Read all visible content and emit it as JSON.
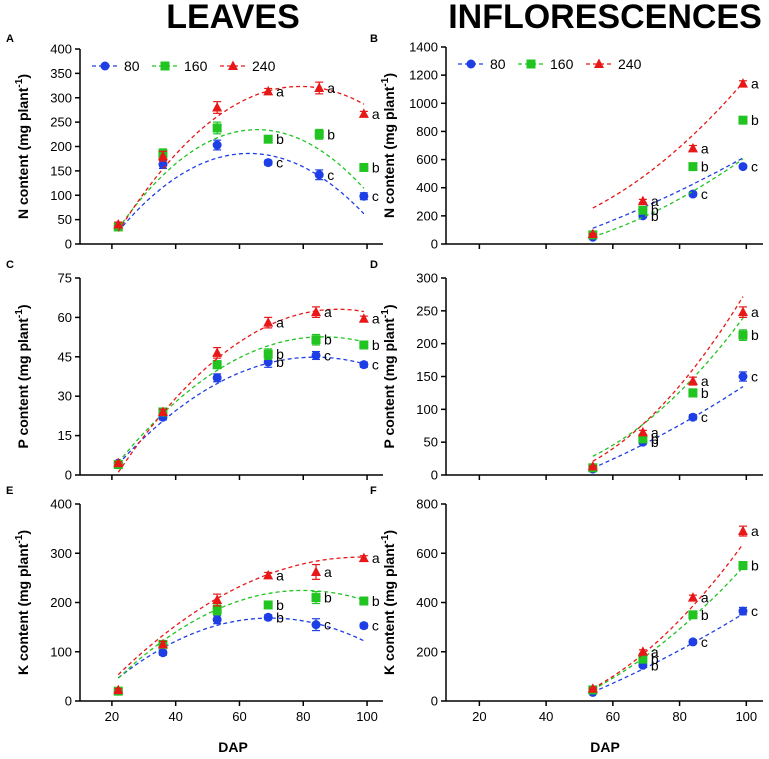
{
  "titles": {
    "left": "LEAVES",
    "right": "INFLORESCENCES"
  },
  "x_axis_label": "DAP",
  "series_styles": [
    {
      "name": "80",
      "color": "#1f3fe6",
      "marker": "circle"
    },
    {
      "name": "160",
      "color": "#22c422",
      "marker": "square"
    },
    {
      "name": "240",
      "color": "#e81818",
      "marker": "triangle"
    }
  ],
  "chart_data": [
    {
      "panel": "A",
      "type": "scatter",
      "ylabel": "N content (mg plant",
      "ylabel_sup": "-1",
      "ylabel_end": ")",
      "xlim": [
        10,
        105
      ],
      "ylim": [
        0,
        400
      ],
      "xticks": [
        20,
        40,
        60,
        80,
        100
      ],
      "yticks": [
        0,
        50,
        100,
        150,
        200,
        250,
        300,
        350,
        400
      ],
      "show_x_ticklabels": false,
      "show_xlabel": false,
      "legend": true,
      "series": [
        {
          "name": "80",
          "x": [
            22,
            36,
            53,
            69,
            85,
            99
          ],
          "y": [
            38,
            163,
            203,
            167,
            142,
            98
          ],
          "err": [
            5,
            8,
            10,
            5,
            10,
            7
          ],
          "fit": [
            -0.0953,
            12.0,
            -192
          ],
          "labels": [
            "",
            "",
            "",
            "c",
            "c",
            "c"
          ]
        },
        {
          "name": "160",
          "x": [
            22,
            36,
            53,
            69,
            85,
            99
          ],
          "y": [
            35,
            185,
            238,
            215,
            225,
            157
          ],
          "err": [
            5,
            10,
            12,
            6,
            10,
            7
          ],
          "fit": [
            -0.1073,
            14.06,
            -226
          ],
          "labels": [
            "",
            "",
            "",
            "b",
            "b",
            "b"
          ]
        },
        {
          "name": "240",
          "x": [
            22,
            36,
            53,
            69,
            85,
            99
          ],
          "y": [
            40,
            180,
            280,
            313,
            320,
            267
          ],
          "err": [
            5,
            10,
            12,
            6,
            12,
            5
          ],
          "fit": [
            -0.0913,
            14.43,
            -247
          ],
          "labels": [
            "",
            "",
            "",
            "a",
            "a",
            "a"
          ]
        }
      ]
    },
    {
      "panel": "B",
      "type": "scatter",
      "ylabel": "N content (mg plant",
      "ylabel_sup": "-1",
      "ylabel_end": ")",
      "xlim": [
        10,
        105
      ],
      "ylim": [
        0,
        1400
      ],
      "xticks": [
        20,
        40,
        60,
        80,
        100
      ],
      "yticks": [
        0,
        200,
        400,
        600,
        800,
        1000,
        1200,
        1400
      ],
      "show_x_ticklabels": false,
      "show_xlabel": false,
      "legend": true,
      "series": [
        {
          "name": "80",
          "x": [
            54,
            69,
            84,
            99
          ],
          "y": [
            48,
            200,
            355,
            550
          ],
          "err": [
            5,
            10,
            15,
            10
          ],
          "fit": [
            0.0445,
            4.3,
            -250
          ],
          "labels": [
            "",
            "b",
            "c",
            "c"
          ]
        },
        {
          "name": "160",
          "x": [
            54,
            69,
            84,
            99
          ],
          "y": [
            65,
            240,
            550,
            880
          ],
          "err": [
            5,
            10,
            20,
            15
          ],
          "fit": [
            0.1,
            -3.0,
            -79
          ],
          "labels": [
            "",
            "b",
            "b",
            "b"
          ]
        },
        {
          "name": "240",
          "x": [
            54,
            69,
            84,
            99
          ],
          "y": [
            70,
            305,
            680,
            1140
          ],
          "err": [
            5,
            12,
            20,
            20
          ],
          "fit": [
            0.1689,
            -6.03,
            89
          ],
          "labels": [
            "",
            "a",
            "a",
            "a"
          ]
        }
      ]
    },
    {
      "panel": "C",
      "type": "scatter",
      "ylabel": "P content (mg plant",
      "ylabel_sup": "-1",
      "ylabel_end": ")",
      "xlim": [
        10,
        105
      ],
      "ylim": [
        0,
        75
      ],
      "xticks": [
        20,
        40,
        60,
        80,
        100
      ],
      "yticks": [
        0,
        15,
        30,
        45,
        60,
        75
      ],
      "show_x_ticklabels": false,
      "show_xlabel": false,
      "legend": false,
      "series": [
        {
          "name": "80",
          "x": [
            22,
            36,
            53,
            69,
            84,
            99
          ],
          "y": [
            4.5,
            22,
            37,
            43,
            45.5,
            42
          ],
          "err": [
            0.5,
            1,
            1.5,
            2,
            1.5,
            1
          ],
          "fit": [
            -0.0107,
            1.79,
            -30.0
          ],
          "labels": [
            "",
            "",
            "",
            "b",
            "c",
            "c"
          ]
        },
        {
          "name": "160",
          "x": [
            22,
            36,
            53,
            69,
            84,
            99
          ],
          "y": [
            4,
            24,
            42,
            46,
            51.5,
            49.5
          ],
          "err": [
            0.5,
            1,
            1.5,
            2,
            2,
            1
          ],
          "fit": [
            -0.0116,
            2.0,
            -33.6
          ],
          "labels": [
            "",
            "",
            "",
            "b",
            "b",
            "b"
          ]
        },
        {
          "name": "240",
          "x": [
            22,
            36,
            53,
            69,
            84,
            99
          ],
          "y": [
            4.5,
            24,
            46.5,
            58,
            62,
            59.5
          ],
          "err": [
            0.5,
            1,
            2,
            2,
            2,
            1
          ],
          "fit": [
            -0.0131,
            2.38,
            -45.0
          ],
          "labels": [
            "",
            "",
            "",
            "a",
            "a",
            "a"
          ]
        }
      ]
    },
    {
      "panel": "D",
      "type": "scatter",
      "ylabel": "P content (mg plant",
      "ylabel_sup": "-1",
      "ylabel_end": ")",
      "xlim": [
        10,
        105
      ],
      "ylim": [
        0,
        300
      ],
      "xticks": [
        20,
        40,
        60,
        80,
        100
      ],
      "yticks": [
        0,
        50,
        100,
        150,
        200,
        250,
        300
      ],
      "show_x_ticklabels": false,
      "show_xlabel": false,
      "legend": false,
      "series": [
        {
          "name": "80",
          "x": [
            54,
            69,
            84,
            99
          ],
          "y": [
            9,
            50,
            88,
            150
          ],
          "err": [
            1,
            3,
            4,
            7
          ],
          "fit": [
            0.0126,
            0.83,
            -71
          ],
          "labels": [
            "",
            "b",
            "c",
            "c"
          ]
        },
        {
          "name": "160",
          "x": [
            54,
            69,
            84,
            99
          ],
          "y": [
            11,
            55,
            125,
            213
          ],
          "err": [
            1,
            3,
            6,
            8
          ],
          "fit": [
            0.0481,
            -2.68,
            33
          ],
          "labels": [
            "",
            "b",
            "b",
            "b"
          ]
        },
        {
          "name": "240",
          "x": [
            54,
            69,
            84,
            99
          ],
          "y": [
            13,
            65,
            143,
            248
          ],
          "err": [
            1,
            3,
            6,
            8
          ],
          "fit": [
            0.0606,
            -3.7,
            44
          ],
          "labels": [
            "",
            "a",
            "a",
            "a"
          ]
        }
      ]
    },
    {
      "panel": "E",
      "type": "scatter",
      "ylabel": "K content (mg plant",
      "ylabel_sup": "-1",
      "ylabel_end": ")",
      "xlim": [
        10,
        105
      ],
      "ylim": [
        0,
        400
      ],
      "xticks": [
        20,
        40,
        60,
        80,
        100
      ],
      "yticks": [
        0,
        100,
        200,
        300,
        400
      ],
      "show_x_ticklabels": true,
      "show_xlabel": true,
      "legend": false,
      "series": [
        {
          "name": "80",
          "x": [
            22,
            36,
            53,
            69,
            84,
            99
          ],
          "y": [
            20,
            98,
            165,
            170,
            155,
            153
          ],
          "err": [
            3,
            5,
            8,
            5,
            12,
            5
          ],
          "fit": [
            -0.0535,
            7.45,
            -91
          ],
          "labels": [
            "",
            "",
            "",
            "b",
            "c",
            "c"
          ]
        },
        {
          "name": "160",
          "x": [
            22,
            36,
            53,
            69,
            84,
            99
          ],
          "y": [
            20,
            115,
            185,
            195,
            210,
            203
          ],
          "err": [
            3,
            6,
            10,
            6,
            12,
            5
          ],
          "fit": [
            -0.0532,
            8.5,
            -115
          ],
          "labels": [
            "",
            "",
            "",
            "b",
            "b",
            "b"
          ]
        },
        {
          "name": "240",
          "x": [
            22,
            36,
            53,
            69,
            84,
            99
          ],
          "y": [
            22,
            115,
            205,
            255,
            262,
            290
          ],
          "err": [
            3,
            6,
            12,
            6,
            15,
            5
          ],
          "fit": [
            -0.0411,
            8.07,
            -104
          ],
          "labels": [
            "",
            "",
            "",
            "a",
            "a",
            "a"
          ]
        }
      ]
    },
    {
      "panel": "F",
      "type": "scatter",
      "ylabel": "K content (mg plant",
      "ylabel_sup": "-1",
      "ylabel_end": ")",
      "xlim": [
        10,
        105
      ],
      "ylim": [
        0,
        800
      ],
      "xticks": [
        20,
        40,
        60,
        80,
        100
      ],
      "yticks": [
        0,
        200,
        400,
        600,
        800
      ],
      "show_x_ticklabels": true,
      "show_xlabel": true,
      "legend": false,
      "series": [
        {
          "name": "80",
          "x": [
            54,
            69,
            84,
            99
          ],
          "y": [
            35,
            145,
            240,
            365
          ],
          "err": [
            3,
            8,
            8,
            15
          ],
          "fit": [
            0.0272,
            2.9,
            -200
          ],
          "labels": [
            "",
            "b",
            "c",
            "c"
          ]
        },
        {
          "name": "160",
          "x": [
            54,
            69,
            84,
            99
          ],
          "y": [
            45,
            170,
            350,
            550
          ],
          "err": [
            3,
            8,
            10,
            15
          ],
          "fit": [
            0.0833,
            -1.7,
            -105
          ],
          "labels": [
            "",
            "b",
            "b",
            "b"
          ]
        },
        {
          "name": "240",
          "x": [
            54,
            69,
            84,
            99
          ],
          "y": [
            50,
            200,
            420,
            690
          ],
          "err": [
            3,
            8,
            10,
            20
          ],
          "fit": [
            0.1244,
            -6.0,
            12
          ],
          "labels": [
            "",
            "a",
            "a",
            "a"
          ]
        }
      ]
    }
  ]
}
